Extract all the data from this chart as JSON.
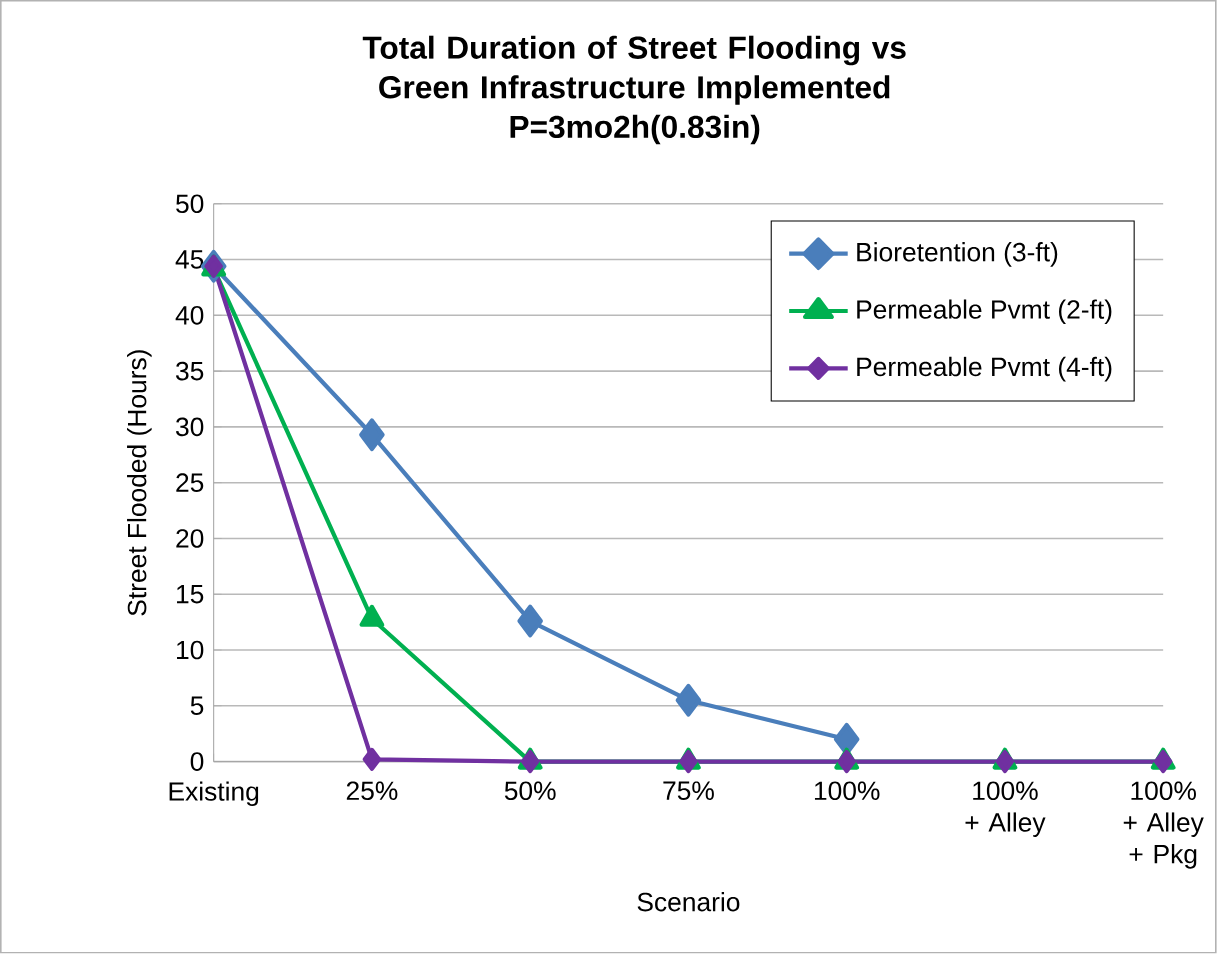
{
  "chart_data": {
    "type": "line",
    "title": "Total Duration of Street Flooding vs Green Infrastructure Implemented",
    "subtitle": "P=3mo2h(0.83in)",
    "xlabel": "Scenario",
    "ylabel": "Street Flooded (Hours)",
    "categories": [
      "Existing",
      "25%",
      "50%",
      "75%",
      "100%",
      "100% + Alley",
      "100% + Alley + Pkg"
    ],
    "series": [
      {
        "name": "Bioretention (3-ft)",
        "color": "#4a7ebb",
        "marker": "diamond",
        "values": [
          44.4,
          29.3,
          12.6,
          5.5,
          2.0,
          null,
          null
        ]
      },
      {
        "name": "Permeable Pvmt (2-ft)",
        "color": "#00b050",
        "marker": "triangle",
        "values": [
          44.2,
          12.8,
          0,
          0,
          0,
          0,
          0
        ]
      },
      {
        "name": "Permeable Pvmt (4-ft)",
        "color": "#7030a0",
        "marker": "diamond",
        "values": [
          44.4,
          0.2,
          0,
          0,
          0,
          0,
          0
        ]
      }
    ],
    "ylim": [
      0,
      50
    ],
    "yticks": [
      0,
      5,
      10,
      15,
      20,
      25,
      30,
      35,
      40,
      45,
      50
    ],
    "grid": "y",
    "legend": "top right"
  }
}
